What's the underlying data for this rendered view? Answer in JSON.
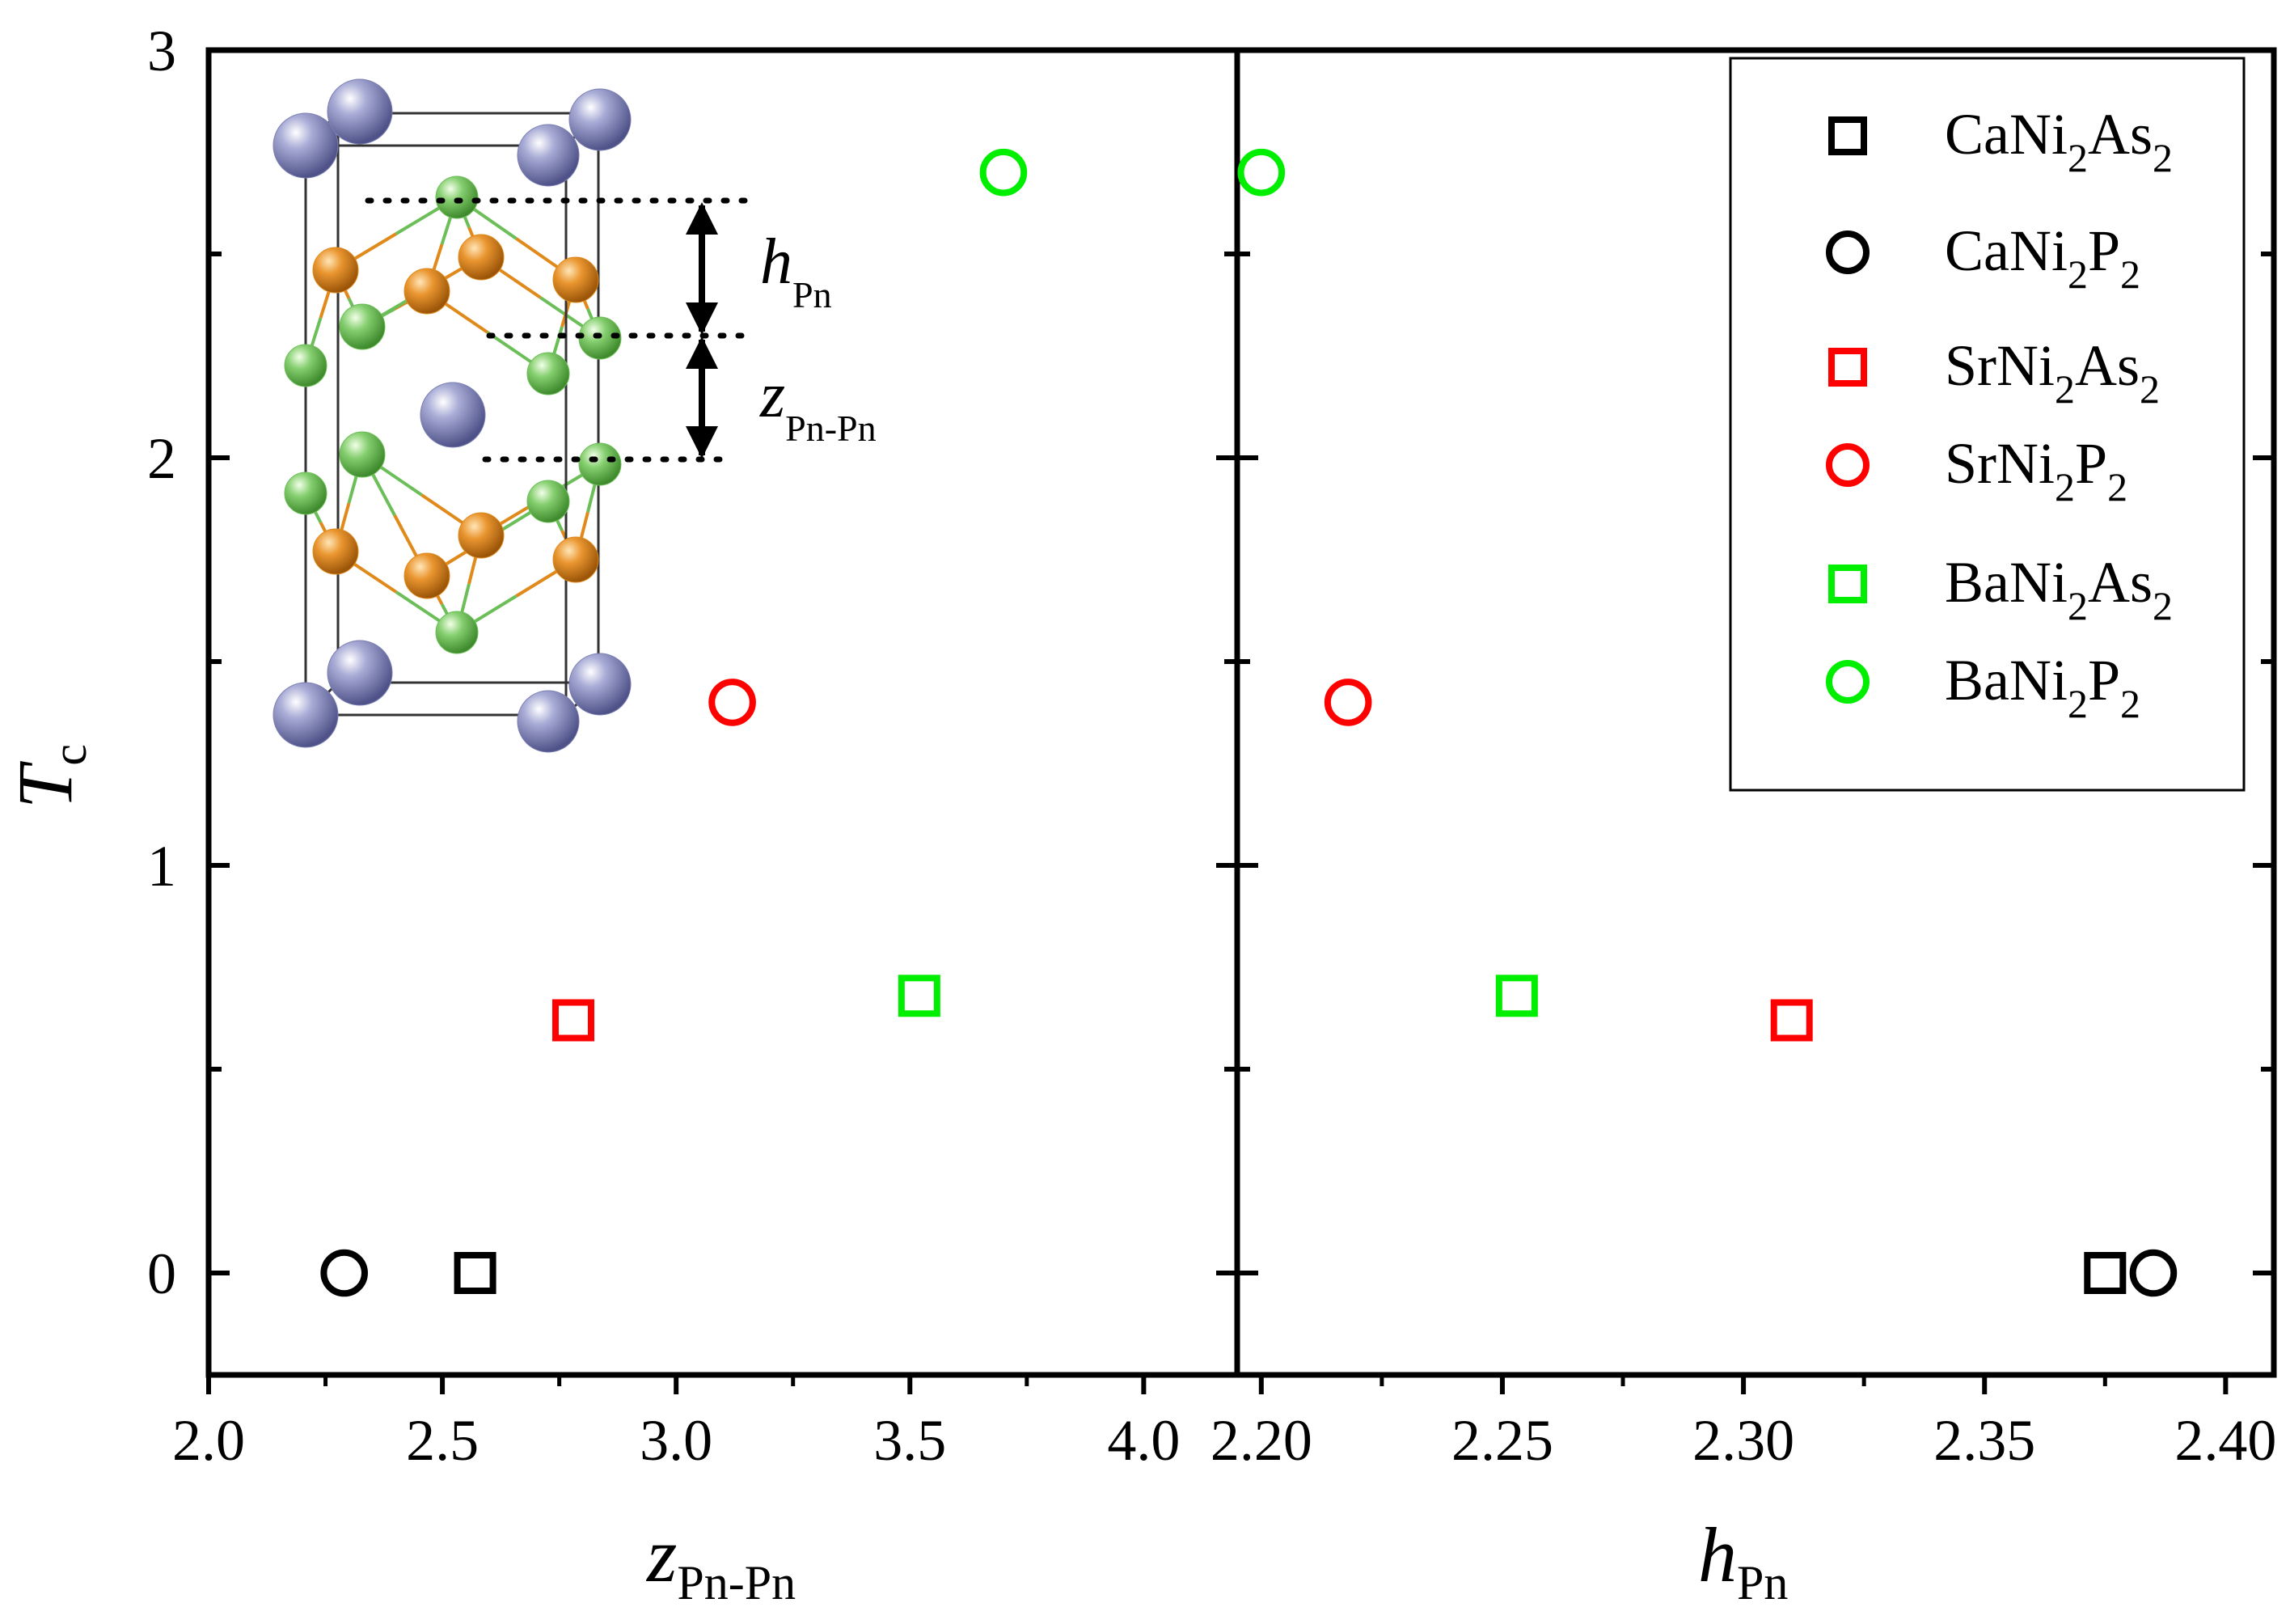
{
  "chart_data": [
    {
      "type": "scatter",
      "panel": "left",
      "xlabel": {
        "main": "z",
        "sub": "Pn-Pn"
      },
      "ylabel": {
        "main": "T",
        "sub": "c"
      },
      "xlim": [
        2.0,
        4.2
      ],
      "ylim": [
        -0.25,
        3.0
      ],
      "xticks": [
        2.0,
        2.5,
        3.0,
        3.5,
        4.0
      ],
      "xtick_labels": [
        "2.0",
        "2.5",
        "3.0",
        "3.5",
        "4.0"
      ],
      "yticks": [
        0,
        1,
        2,
        3
      ],
      "ytick_labels": [
        "0",
        "1",
        "2",
        "3"
      ],
      "series": [
        {
          "name": "CaNi2As2",
          "marker": "square",
          "color": "#000000",
          "x": [
            2.57
          ],
          "y": [
            0
          ]
        },
        {
          "name": "CaNi2P2",
          "marker": "circle",
          "color": "#000000",
          "x": [
            2.29
          ],
          "y": [
            0
          ]
        },
        {
          "name": "SrNi2As2",
          "marker": "square",
          "color": "#ff0000",
          "x": [
            2.78
          ],
          "y": [
            0.62
          ]
        },
        {
          "name": "SrNi2P2",
          "marker": "circle",
          "color": "#ff0000",
          "x": [
            3.12
          ],
          "y": [
            1.4
          ]
        },
        {
          "name": "BaNi2As2",
          "marker": "square",
          "color": "#00ee00",
          "x": [
            3.52
          ],
          "y": [
            0.68
          ]
        },
        {
          "name": "BaNi2P2",
          "marker": "circle",
          "color": "#00ee00",
          "x": [
            3.7
          ],
          "y": [
            2.7
          ]
        }
      ]
    },
    {
      "type": "scatter",
      "panel": "right",
      "xlabel": {
        "main": "h",
        "sub": "Pn"
      },
      "xlim": [
        2.195,
        2.41
      ],
      "ylim": [
        -0.25,
        3.0
      ],
      "xticks": [
        2.2,
        2.25,
        2.3,
        2.35,
        2.4
      ],
      "xtick_labels": [
        "2.20",
        "2.25",
        "2.30",
        "2.35",
        "2.40"
      ],
      "yticks": [
        0,
        1,
        2,
        3
      ],
      "series": [
        {
          "name": "CaNi2As2",
          "marker": "square",
          "color": "#000000",
          "x": [
            2.375
          ],
          "y": [
            0
          ]
        },
        {
          "name": "CaNi2P2",
          "marker": "circle",
          "color": "#000000",
          "x": [
            2.385
          ],
          "y": [
            0
          ]
        },
        {
          "name": "SrNi2As2",
          "marker": "square",
          "color": "#ff0000",
          "x": [
            2.31
          ],
          "y": [
            0.62
          ]
        },
        {
          "name": "SrNi2P2",
          "marker": "circle",
          "color": "#ff0000",
          "x": [
            2.218
          ],
          "y": [
            1.4
          ]
        },
        {
          "name": "BaNi2As2",
          "marker": "square",
          "color": "#00ee00",
          "x": [
            2.253
          ],
          "y": [
            0.68
          ]
        },
        {
          "name": "BaNi2P2",
          "marker": "circle",
          "color": "#00ee00",
          "x": [
            2.2
          ],
          "y": [
            2.7
          ]
        }
      ]
    }
  ],
  "legend": {
    "placement": "top-right",
    "entries": [
      {
        "marker": "square",
        "color": "#000000",
        "parts": [
          [
            "Ca",
            false
          ],
          [
            "Ni",
            false
          ],
          [
            "2",
            true
          ],
          [
            "As",
            false
          ],
          [
            "2",
            true
          ]
        ]
      },
      {
        "marker": "circle",
        "color": "#000000",
        "parts": [
          [
            "Ca",
            false
          ],
          [
            "Ni",
            false
          ],
          [
            "2",
            true
          ],
          [
            "P",
            false
          ],
          [
            "2",
            true
          ]
        ]
      },
      {
        "marker": "square",
        "color": "#ff0000",
        "parts": [
          [
            "Sr",
            false
          ],
          [
            "Ni",
            false
          ],
          [
            "2",
            true
          ],
          [
            "As",
            false
          ],
          [
            "2",
            true
          ]
        ]
      },
      {
        "marker": "circle",
        "color": "#ff0000",
        "parts": [
          [
            "Sr",
            false
          ],
          [
            "Ni",
            false
          ],
          [
            "2",
            true
          ],
          [
            "P",
            false
          ],
          [
            "2",
            true
          ]
        ]
      },
      {
        "marker": "square",
        "color": "#00ee00",
        "parts": [
          [
            "Ba",
            false
          ],
          [
            "Ni",
            false
          ],
          [
            "2",
            true
          ],
          [
            "As",
            false
          ],
          [
            "2",
            true
          ]
        ]
      },
      {
        "marker": "circle",
        "color": "#00ee00",
        "parts": [
          [
            "Ba",
            false
          ],
          [
            "Ni",
            false
          ],
          [
            "2",
            true
          ],
          [
            "P",
            false
          ],
          [
            "2",
            true
          ]
        ]
      }
    ]
  },
  "inset": {
    "description_labels": {
      "h_main": "h",
      "h_sub": "Pn",
      "z_main": "z",
      "z_sub": "Pn-Pn"
    },
    "atom_colors": {
      "cation": "#7b7fb2",
      "nickel": "#e08a1c",
      "pnictogen": "#6cbf58"
    }
  }
}
